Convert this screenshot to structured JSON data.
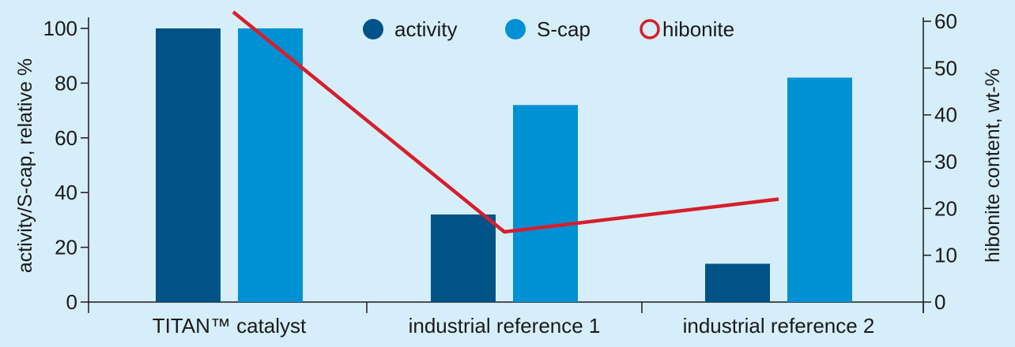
{
  "chart_data": {
    "type": "bar",
    "categories": [
      "TITAN™ catalyst",
      "industrial reference 1",
      "industrial reference 2"
    ],
    "series": [
      {
        "name": "activity",
        "type": "bar",
        "axis": "left",
        "color": "#005386",
        "values": [
          100,
          32,
          14
        ]
      },
      {
        "name": "S-cap",
        "type": "bar",
        "axis": "left",
        "color": "#0090d4",
        "values": [
          100,
          72,
          82
        ]
      },
      {
        "name": "hibonite",
        "type": "line",
        "axis": "right",
        "color": "#d61f2b",
        "values": [
          62,
          15,
          22
        ]
      }
    ],
    "ylabel": "activity/S-cap, relative %",
    "ylabel_right": "hibonite content, wt-%",
    "ylim": [
      0,
      100
    ],
    "ylim_right": [
      0,
      60
    ],
    "yticks": [
      "0",
      "20",
      "40",
      "60",
      "80",
      "100"
    ],
    "yticks_right": [
      "0",
      "10",
      "20",
      "30",
      "40",
      "50",
      "60"
    ],
    "legend_position": "top-center",
    "grid": false
  }
}
